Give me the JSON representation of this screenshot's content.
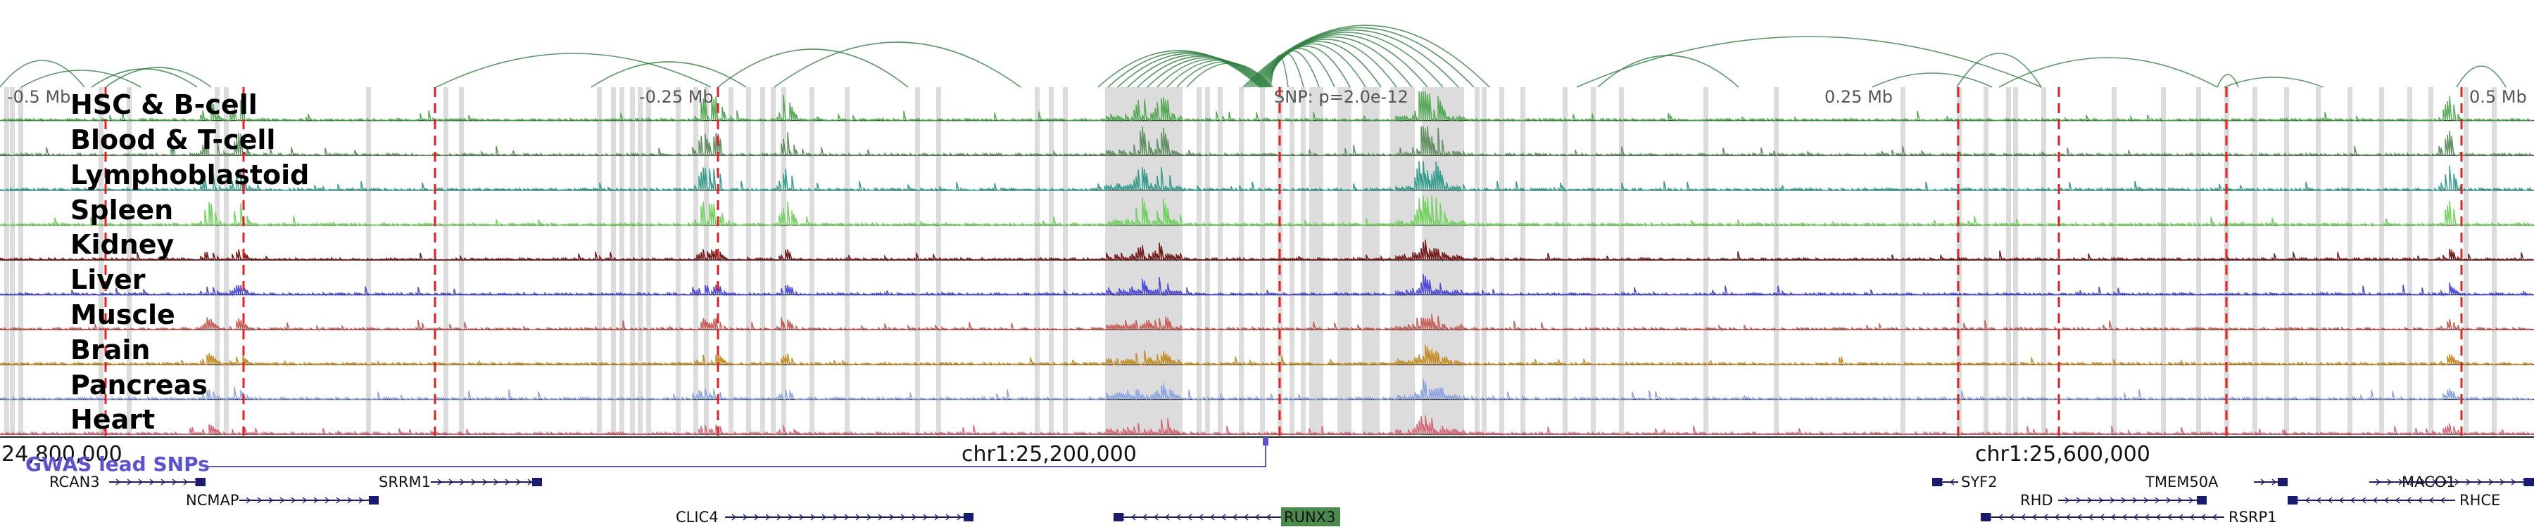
{
  "colors": {
    "arc": "#2e8040",
    "highlight": "#dcdcdc",
    "dashed_line": "#e02020",
    "gwas": "#5a52d0",
    "gene": "#1a1a6e",
    "runx3_box": "#4a8a4a",
    "axis": "#222222"
  },
  "distance_labels": [
    "-0.5 Mb",
    "-0.25 Mb",
    "0.25 Mb",
    "0.5 Mb"
  ],
  "snp_label": "SNP: p=2.0e-12",
  "tracks": [
    {
      "name": "HSC & B-cell",
      "color": "#4fa84f"
    },
    {
      "name": "Blood & T-cell",
      "color": "#5d8d5d"
    },
    {
      "name": "Lymphoblastoid",
      "color": "#2f9a8a"
    },
    {
      "name": "Spleen",
      "color": "#6ed25a"
    },
    {
      "name": "Kidney",
      "color": "#6e1212"
    },
    {
      "name": "Liver",
      "color": "#4747d6"
    },
    {
      "name": "Muscle",
      "color": "#c45a52"
    },
    {
      "name": "Brain",
      "color": "#c28a20"
    },
    {
      "name": "Pancreas",
      "color": "#8aa2e0"
    },
    {
      "name": "Heart",
      "color": "#d46474"
    }
  ],
  "coordinates": [
    "24,800,000",
    "chr1:25,200,000",
    "chr1:25,600,000"
  ],
  "gwas_label": "GWAS lead SNPs",
  "genes": [
    {
      "name": "RCAN3"
    },
    {
      "name": "SRRM1"
    },
    {
      "name": "NCMAP"
    },
    {
      "name": "CLIC4"
    },
    {
      "name": "RUNX3"
    },
    {
      "name": "SYF2"
    },
    {
      "name": "RHD"
    },
    {
      "name": "TMEM50A"
    },
    {
      "name": "RSRP1"
    },
    {
      "name": "MACO1"
    },
    {
      "name": "RHCE"
    }
  ]
}
